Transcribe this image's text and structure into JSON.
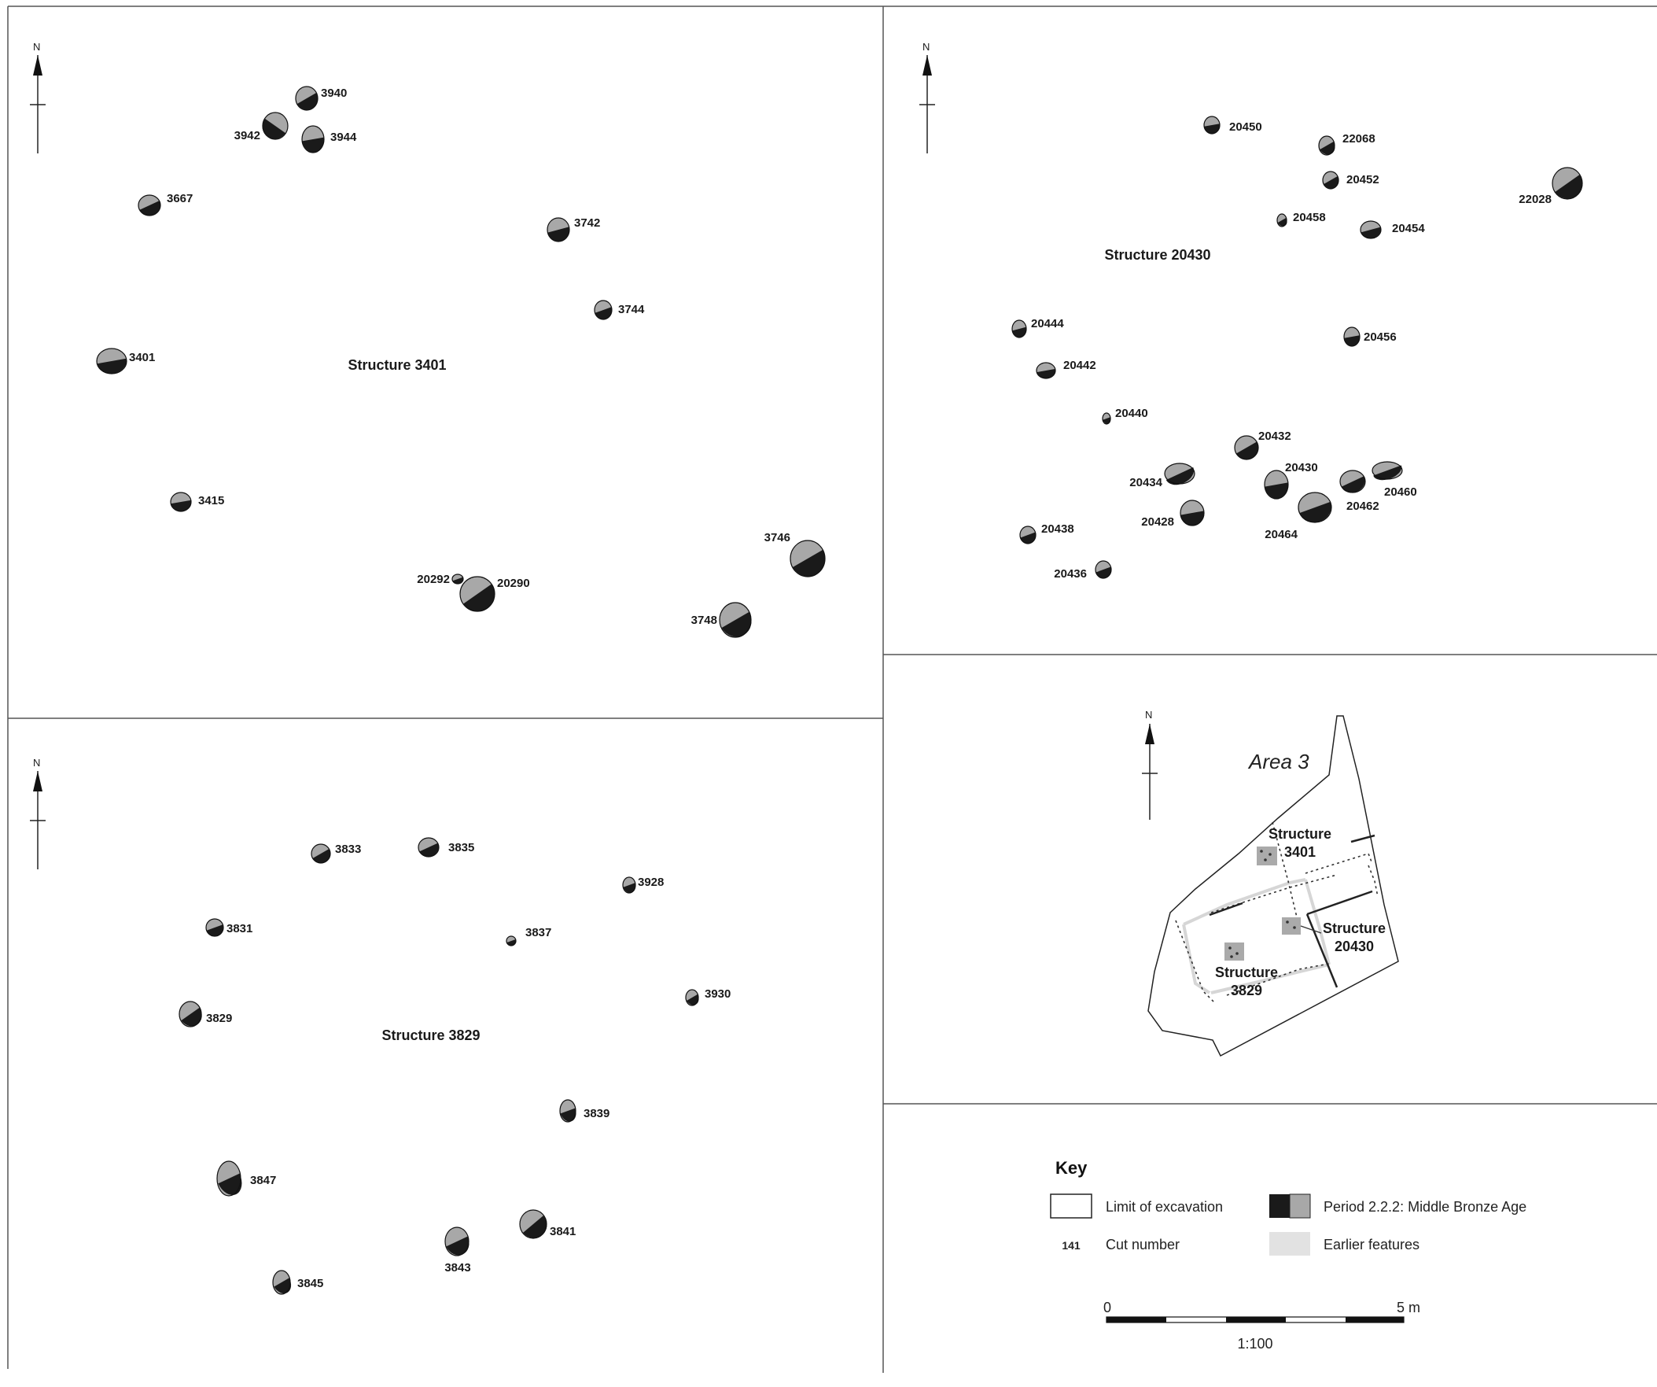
{
  "panels": {
    "structure_3401": {
      "title": "Structure 3401",
      "north": "N",
      "features": [
        {
          "id": "3940"
        },
        {
          "id": "3942"
        },
        {
          "id": "3944"
        },
        {
          "id": "3667"
        },
        {
          "id": "3742"
        },
        {
          "id": "3744"
        },
        {
          "id": "3401"
        },
        {
          "id": "3415"
        },
        {
          "id": "3746"
        },
        {
          "id": "20292"
        },
        {
          "id": "20290"
        },
        {
          "id": "3748"
        }
      ]
    },
    "structure_20430": {
      "title": "Structure 20430",
      "north": "N",
      "features": [
        {
          "id": "20450"
        },
        {
          "id": "22068"
        },
        {
          "id": "20452"
        },
        {
          "id": "22028"
        },
        {
          "id": "20458"
        },
        {
          "id": "20454"
        },
        {
          "id": "20444"
        },
        {
          "id": "20456"
        },
        {
          "id": "20442"
        },
        {
          "id": "20440"
        },
        {
          "id": "20432"
        },
        {
          "id": "20430"
        },
        {
          "id": "20434"
        },
        {
          "id": "20460"
        },
        {
          "id": "20462"
        },
        {
          "id": "20428"
        },
        {
          "id": "20464"
        },
        {
          "id": "20438"
        },
        {
          "id": "20436"
        }
      ]
    },
    "structure_3829": {
      "title": "Structure 3829",
      "north": "N",
      "features": [
        {
          "id": "3833"
        },
        {
          "id": "3835"
        },
        {
          "id": "3928"
        },
        {
          "id": "3831"
        },
        {
          "id": "3837"
        },
        {
          "id": "3930"
        },
        {
          "id": "3829"
        },
        {
          "id": "3839"
        },
        {
          "id": "3847"
        },
        {
          "id": "3841"
        },
        {
          "id": "3843"
        },
        {
          "id": "3845"
        }
      ]
    }
  },
  "location_map": {
    "title": "Area 3",
    "north": "N",
    "labels": [
      {
        "line1": "Structure",
        "line2": "3401"
      },
      {
        "line1": "Structure",
        "line2": "20430"
      },
      {
        "line1": "Structure",
        "line2": "3829"
      }
    ]
  },
  "key": {
    "title": "Key",
    "limit_of_excavation": "Limit of excavation",
    "period": "Period 2.2.2: Middle Bronze Age",
    "cut_number_example": "141",
    "cut_number": "Cut number",
    "earlier_features": "Earlier features",
    "colors": {
      "fill_dark": "#1a1a1a",
      "fill_mid": "#a8a8a8",
      "earlier": "#e2e2e2"
    }
  },
  "scale": {
    "start": "0",
    "end": "5 m",
    "ratio": "1:100"
  }
}
